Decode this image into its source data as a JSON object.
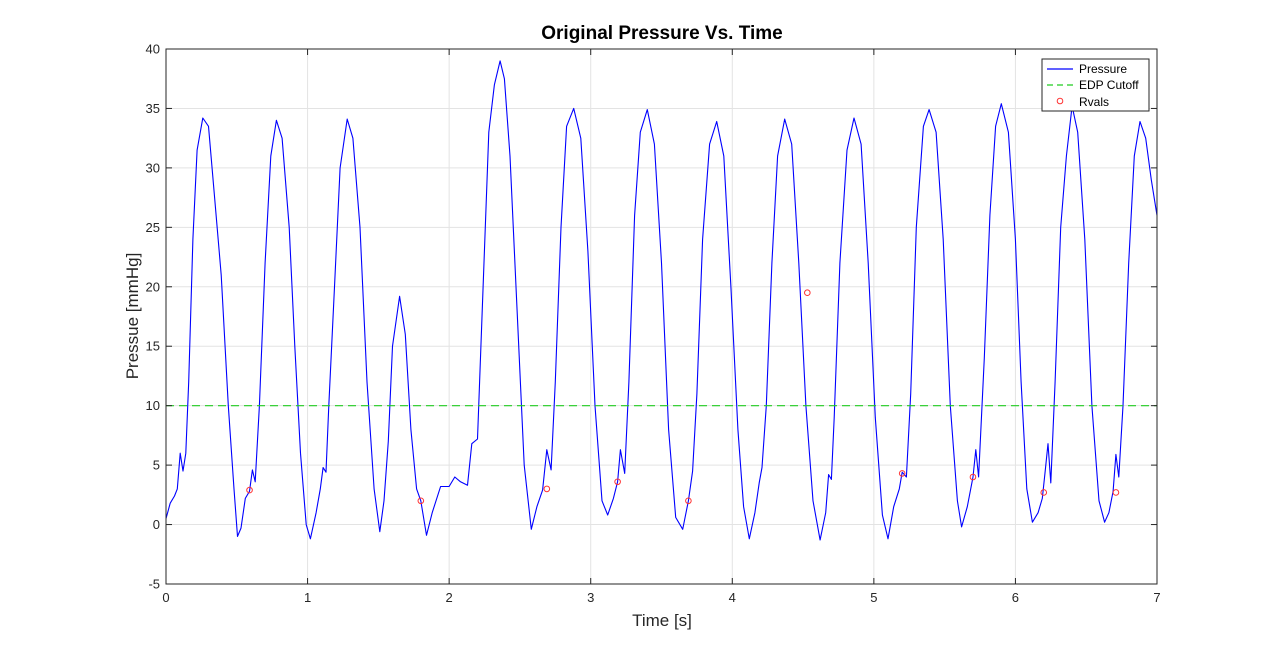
{
  "chart_data": {
    "type": "line",
    "title": "Original Pressure Vs. Time",
    "xlabel": "Time [s]",
    "ylabel": "Pressue [mmHg]",
    "xlim": [
      0,
      7
    ],
    "ylim": [
      -5,
      40
    ],
    "xticks": [
      0,
      1,
      2,
      3,
      4,
      5,
      6,
      7
    ],
    "xtick_labels": [
      "0",
      "1",
      "2",
      "3",
      "4",
      "5",
      "6",
      "7"
    ],
    "yticks": [
      -5,
      0,
      5,
      10,
      15,
      20,
      25,
      30,
      35,
      40
    ],
    "ytick_labels": [
      "-5",
      "0",
      "5",
      "10",
      "15",
      "20",
      "25",
      "30",
      "35",
      "40"
    ],
    "grid": true,
    "legend_position": "top-right",
    "series": [
      {
        "name": "Pressure",
        "style": "solid",
        "color": "#0000ff",
        "points": [
          [
            0.0,
            0.5
          ],
          [
            0.03,
            1.8
          ],
          [
            0.06,
            2.4
          ],
          [
            0.08,
            3.0
          ],
          [
            0.1,
            6.0
          ],
          [
            0.12,
            4.5
          ],
          [
            0.14,
            6.0
          ],
          [
            0.16,
            12.0
          ],
          [
            0.19,
            24.0
          ],
          [
            0.22,
            31.5
          ],
          [
            0.26,
            34.2
          ],
          [
            0.3,
            33.5
          ],
          [
            0.34,
            28.0
          ],
          [
            0.39,
            21.0
          ],
          [
            0.44,
            10.0
          ],
          [
            0.48,
            3.0
          ],
          [
            0.505,
            -1.0
          ],
          [
            0.53,
            -0.3
          ],
          [
            0.56,
            2.2
          ],
          [
            0.59,
            2.8
          ],
          [
            0.61,
            4.6
          ],
          [
            0.63,
            3.6
          ],
          [
            0.66,
            10.0
          ],
          [
            0.7,
            22.0
          ],
          [
            0.74,
            31.0
          ],
          [
            0.78,
            34.0
          ],
          [
            0.82,
            32.5
          ],
          [
            0.87,
            25.0
          ],
          [
            0.91,
            15.0
          ],
          [
            0.95,
            6.0
          ],
          [
            0.99,
            0.0
          ],
          [
            1.02,
            -1.2
          ],
          [
            1.06,
            1.0
          ],
          [
            1.09,
            3.0
          ],
          [
            1.11,
            4.8
          ],
          [
            1.13,
            4.4
          ],
          [
            1.15,
            10.0
          ],
          [
            1.19,
            20.0
          ],
          [
            1.23,
            30.0
          ],
          [
            1.28,
            34.1
          ],
          [
            1.32,
            32.5
          ],
          [
            1.37,
            25.0
          ],
          [
            1.42,
            12.0
          ],
          [
            1.47,
            3.0
          ],
          [
            1.51,
            -0.6
          ],
          [
            1.54,
            2.0
          ],
          [
            1.57,
            7.0
          ],
          [
            1.6,
            15.0
          ],
          [
            1.65,
            19.2
          ],
          [
            1.69,
            16.0
          ],
          [
            1.73,
            8.0
          ],
          [
            1.77,
            3.0
          ],
          [
            1.8,
            2.0
          ],
          [
            1.84,
            -0.9
          ],
          [
            1.88,
            1.0
          ],
          [
            1.94,
            3.2
          ],
          [
            2.0,
            3.2
          ],
          [
            2.04,
            4.0
          ],
          [
            2.08,
            3.6
          ],
          [
            2.13,
            3.3
          ],
          [
            2.16,
            6.8
          ],
          [
            2.2,
            7.2
          ],
          [
            2.24,
            20.0
          ],
          [
            2.28,
            33.0
          ],
          [
            2.32,
            37.0
          ],
          [
            2.36,
            39.0
          ],
          [
            2.39,
            37.5
          ],
          [
            2.43,
            31.0
          ],
          [
            2.48,
            18.0
          ],
          [
            2.53,
            5.0
          ],
          [
            2.58,
            -0.4
          ],
          [
            2.62,
            1.5
          ],
          [
            2.66,
            2.9
          ],
          [
            2.69,
            6.3
          ],
          [
            2.72,
            4.6
          ],
          [
            2.75,
            12.0
          ],
          [
            2.79,
            25.0
          ],
          [
            2.83,
            33.5
          ],
          [
            2.88,
            35.0
          ],
          [
            2.93,
            32.5
          ],
          [
            2.98,
            23.0
          ],
          [
            3.03,
            10.0
          ],
          [
            3.08,
            2.0
          ],
          [
            3.12,
            0.8
          ],
          [
            3.16,
            2.2
          ],
          [
            3.19,
            3.6
          ],
          [
            3.21,
            6.3
          ],
          [
            3.24,
            4.3
          ],
          [
            3.27,
            12.0
          ],
          [
            3.31,
            26.0
          ],
          [
            3.35,
            33.0
          ],
          [
            3.4,
            34.9
          ],
          [
            3.45,
            32.0
          ],
          [
            3.5,
            22.0
          ],
          [
            3.55,
            8.0
          ],
          [
            3.6,
            0.6
          ],
          [
            3.65,
            -0.4
          ],
          [
            3.69,
            2.0
          ],
          [
            3.72,
            4.5
          ],
          [
            3.75,
            11.0
          ],
          [
            3.79,
            24.0
          ],
          [
            3.84,
            32.0
          ],
          [
            3.89,
            33.9
          ],
          [
            3.94,
            31.0
          ],
          [
            3.99,
            20.0
          ],
          [
            4.04,
            8.0
          ],
          [
            4.08,
            1.5
          ],
          [
            4.12,
            -1.2
          ],
          [
            4.16,
            1.0
          ],
          [
            4.19,
            3.5
          ],
          [
            4.21,
            4.8
          ],
          [
            4.24,
            10.0
          ],
          [
            4.28,
            22.0
          ],
          [
            4.32,
            31.0
          ],
          [
            4.37,
            34.1
          ],
          [
            4.42,
            32.0
          ],
          [
            4.47,
            22.0
          ],
          [
            4.52,
            10.0
          ],
          [
            4.57,
            2.0
          ],
          [
            4.62,
            -1.3
          ],
          [
            4.66,
            1.0
          ],
          [
            4.68,
            4.2
          ],
          [
            4.7,
            3.8
          ],
          [
            4.72,
            9.0
          ],
          [
            4.76,
            22.0
          ],
          [
            4.81,
            31.5
          ],
          [
            4.86,
            34.2
          ],
          [
            4.91,
            32.0
          ],
          [
            4.96,
            22.0
          ],
          [
            5.01,
            9.0
          ],
          [
            5.06,
            0.8
          ],
          [
            5.1,
            -1.2
          ],
          [
            5.14,
            1.5
          ],
          [
            5.18,
            3.0
          ],
          [
            5.2,
            4.4
          ],
          [
            5.23,
            4.0
          ],
          [
            5.26,
            11.0
          ],
          [
            5.3,
            25.0
          ],
          [
            5.35,
            33.5
          ],
          [
            5.39,
            34.9
          ],
          [
            5.44,
            33.0
          ],
          [
            5.49,
            24.0
          ],
          [
            5.54,
            10.0
          ],
          [
            5.59,
            2.0
          ],
          [
            5.62,
            -0.2
          ],
          [
            5.66,
            1.5
          ],
          [
            5.7,
            4.0
          ],
          [
            5.72,
            6.3
          ],
          [
            5.74,
            4.0
          ],
          [
            5.78,
            14.0
          ],
          [
            5.82,
            26.0
          ],
          [
            5.86,
            33.5
          ],
          [
            5.9,
            35.4
          ],
          [
            5.95,
            33.0
          ],
          [
            6.0,
            24.0
          ],
          [
            6.04,
            12.0
          ],
          [
            6.08,
            3.0
          ],
          [
            6.12,
            0.2
          ],
          [
            6.16,
            1.0
          ],
          [
            6.19,
            2.2
          ],
          [
            6.21,
            4.5
          ],
          [
            6.23,
            6.8
          ],
          [
            6.25,
            3.5
          ],
          [
            6.28,
            12.0
          ],
          [
            6.32,
            25.0
          ],
          [
            6.36,
            31.0
          ],
          [
            6.4,
            35.2
          ],
          [
            6.44,
            33.0
          ],
          [
            6.49,
            24.0
          ],
          [
            6.54,
            10.0
          ],
          [
            6.59,
            2.0
          ],
          [
            6.63,
            0.2
          ],
          [
            6.66,
            1.0
          ],
          [
            6.69,
            2.8
          ],
          [
            6.71,
            5.9
          ],
          [
            6.73,
            4.0
          ],
          [
            6.76,
            10.0
          ],
          [
            6.8,
            22.0
          ],
          [
            6.84,
            31.0
          ],
          [
            6.88,
            33.9
          ],
          [
            6.92,
            32.5
          ],
          [
            6.96,
            29.0
          ],
          [
            7.0,
            26.0
          ]
        ]
      },
      {
        "name": "EDP Cutoff",
        "style": "dashed",
        "color": "#22cc22",
        "points": [
          [
            0,
            10
          ],
          [
            7,
            10
          ]
        ]
      },
      {
        "name": "Rvals",
        "style": "marker-circle",
        "color": "#ff3333",
        "points": [
          [
            0.59,
            2.9
          ],
          [
            1.8,
            2.0
          ],
          [
            2.69,
            3.0
          ],
          [
            3.19,
            3.6
          ],
          [
            3.69,
            2.0
          ],
          [
            4.53,
            19.5
          ],
          [
            5.2,
            4.3
          ],
          [
            5.7,
            4.0
          ],
          [
            6.2,
            2.7
          ],
          [
            6.71,
            2.7
          ]
        ]
      }
    ]
  }
}
